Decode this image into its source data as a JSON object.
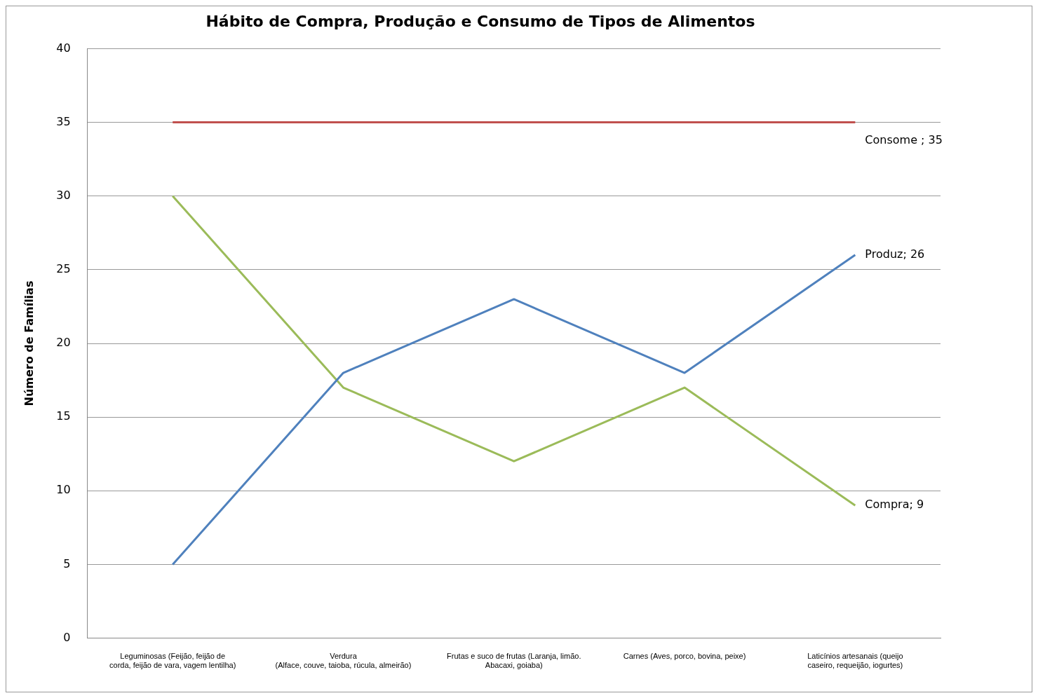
{
  "chart_data": {
    "type": "line",
    "title": "Hábito de Compra, Produção e Consumo de Tipos de Alimentos",
    "ylabel": "Número de Famílias",
    "categories": [
      "Leguminosas (Feijão, feijão de\ncorda, feijão de vara, vagem lentilha)",
      "Verdura\n(Alface, couve, taioba, rúcula, almeirão)",
      "Frutas e suco de frutas (Laranja, limão.\nAbacaxi, goiaba)",
      "Carnes (Aves, porco, bovina, peixe)",
      "Laticínios artesanais (queijo\ncaseiro, requeijão, iogurtes)"
    ],
    "series": [
      {
        "name": "Consome",
        "color": "#c0504d",
        "values": [
          35,
          35,
          35,
          35,
          35
        ],
        "value_labels": [
          null,
          null,
          null,
          null,
          " ; 35"
        ]
      },
      {
        "name": "Produz",
        "color": "#4f81bd",
        "values": [
          5,
          18,
          23,
          18,
          26
        ],
        "value_labels": [
          null,
          null,
          null,
          null,
          "; 26"
        ]
      },
      {
        "name": "Compra",
        "color": "#9bbb59",
        "values": [
          30,
          17,
          12,
          17,
          9
        ],
        "value_labels": [
          null,
          null,
          null,
          null,
          "; 9"
        ]
      }
    ],
    "ylim": [
      0,
      40
    ],
    "yticks": [
      0,
      5,
      10,
      15,
      20,
      25,
      30,
      35,
      40
    ],
    "grid": "y",
    "legend": false,
    "marker": "none",
    "line_style": "solid"
  }
}
